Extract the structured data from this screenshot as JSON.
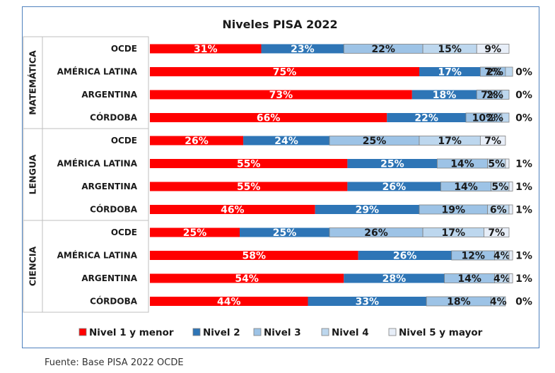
{
  "chart_data": {
    "type": "bar",
    "orientation": "horizontal",
    "stacked": true,
    "title": "Niveles PISA 2022",
    "xlabel": "",
    "ylabel": "",
    "xlim": [
      0,
      100
    ],
    "legend_position": "bottom",
    "grid": false,
    "groups": [
      {
        "label": "MATEMÁTICA",
        "categories": [
          "OCDE",
          "AMÉRICA LATINA",
          "ARGENTINA",
          "CÓRDOBA"
        ],
        "values": [
          [
            31,
            23,
            22,
            15,
            9
          ],
          [
            75,
            17,
            7,
            2,
            0
          ],
          [
            73,
            18,
            7,
            2,
            0
          ],
          [
            66,
            22,
            10,
            2,
            0
          ]
        ],
        "labels": [
          [
            "31%",
            "23%",
            "22%",
            "15%",
            "9%"
          ],
          [
            "75%",
            "17%",
            "7%",
            "2%",
            "0%"
          ],
          [
            "73%",
            "18%",
            "7%",
            "2%",
            "0%"
          ],
          [
            "66%",
            "22%",
            "10%",
            "2%",
            "0%"
          ]
        ]
      },
      {
        "label": "LENGUA",
        "categories": [
          "OCDE",
          "AMÉRICA LATINA",
          "ARGENTINA",
          "CÓRDOBA"
        ],
        "values": [
          [
            26,
            24,
            25,
            17,
            7
          ],
          [
            55,
            25,
            14,
            5,
            1
          ],
          [
            55,
            26,
            14,
            5,
            1
          ],
          [
            46,
            29,
            19,
            6,
            1
          ]
        ],
        "labels": [
          [
            "26%",
            "24%",
            "25%",
            "17%",
            "7%"
          ],
          [
            "55%",
            "25%",
            "14%",
            "5%",
            "1%"
          ],
          [
            "55%",
            "26%",
            "14%",
            "5%",
            "1%"
          ],
          [
            "46%",
            "29%",
            "19%",
            "6%",
            "1%"
          ]
        ]
      },
      {
        "label": "CIENCIA",
        "categories": [
          "OCDE",
          "AMÉRICA LATINA",
          "ARGENTINA",
          "CÓRDOBA"
        ],
        "values": [
          [
            25,
            25,
            26,
            17,
            7
          ],
          [
            58,
            26,
            12,
            4,
            1
          ],
          [
            54,
            28,
            14,
            4,
            1
          ],
          [
            44,
            33,
            18,
            4,
            0
          ]
        ],
        "labels": [
          [
            "25%",
            "25%",
            "26%",
            "17%",
            "7%"
          ],
          [
            "58%",
            "26%",
            "12%",
            "4%",
            "1%"
          ],
          [
            "54%",
            "28%",
            "14%",
            "4%",
            "1%"
          ],
          [
            "44%",
            "33%",
            "18%",
            "4%",
            "0%"
          ]
        ]
      }
    ],
    "series": [
      {
        "name": "Nivel 1 y menor",
        "color": "#ff0000"
      },
      {
        "name": "Nivel 2",
        "color": "#2e75b6"
      },
      {
        "name": "Nivel 3",
        "color": "#9dc3e6"
      },
      {
        "name": "Nivel 4",
        "color": "#bdd7ee"
      },
      {
        "name": "Nivel 5 y mayor",
        "color": "#e7eef8"
      }
    ]
  },
  "source": "Fuente: Base PISA 2022 OCDE"
}
